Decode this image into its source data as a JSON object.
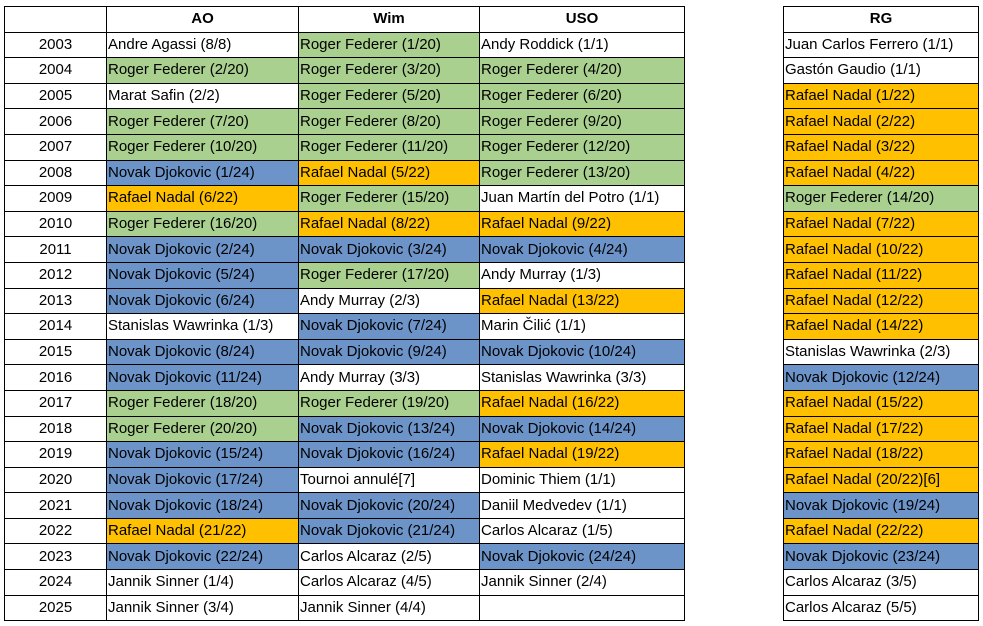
{
  "headers": {
    "year": "",
    "ao": "AO",
    "wim": "Wim",
    "uso": "USO",
    "rg": "RG"
  },
  "colors": {
    "Federer": "#a9d08e",
    "Djokovic": "#6d94c9",
    "Nadal": "#ffc000",
    "none": "#ffffff"
  },
  "rows": [
    {
      "year": "2003",
      "ao": {
        "text": "Andre Agassi (8/8)",
        "player": "none"
      },
      "wim": {
        "text": "Roger Federer (1/20)",
        "player": "Federer"
      },
      "uso": {
        "text": "Andy Roddick (1/1)",
        "player": "none"
      },
      "rg": {
        "text": "Juan Carlos Ferrero (1/1)",
        "player": "none"
      }
    },
    {
      "year": "2004",
      "ao": {
        "text": "Roger Federer (2/20)",
        "player": "Federer"
      },
      "wim": {
        "text": "Roger Federer (3/20)",
        "player": "Federer"
      },
      "uso": {
        "text": "Roger Federer (4/20)",
        "player": "Federer"
      },
      "rg": {
        "text": "Gastón Gaudio (1/1)",
        "player": "none"
      }
    },
    {
      "year": "2005",
      "ao": {
        "text": "Marat Safin (2/2)",
        "player": "none"
      },
      "wim": {
        "text": "Roger Federer (5/20)",
        "player": "Federer"
      },
      "uso": {
        "text": "Roger Federer (6/20)",
        "player": "Federer"
      },
      "rg": {
        "text": "Rafael Nadal (1/22)",
        "player": "Nadal"
      }
    },
    {
      "year": "2006",
      "ao": {
        "text": "Roger Federer (7/20)",
        "player": "Federer"
      },
      "wim": {
        "text": "Roger Federer (8/20)",
        "player": "Federer"
      },
      "uso": {
        "text": "Roger Federer (9/20)",
        "player": "Federer"
      },
      "rg": {
        "text": "Rafael Nadal (2/22)",
        "player": "Nadal"
      }
    },
    {
      "year": "2007",
      "ao": {
        "text": "Roger Federer (10/20)",
        "player": "Federer"
      },
      "wim": {
        "text": "Roger Federer (11/20)",
        "player": "Federer"
      },
      "uso": {
        "text": "Roger Federer (12/20)",
        "player": "Federer"
      },
      "rg": {
        "text": "Rafael Nadal (3/22)",
        "player": "Nadal"
      }
    },
    {
      "year": "2008",
      "ao": {
        "text": "Novak Djokovic (1/24)",
        "player": "Djokovic"
      },
      "wim": {
        "text": "Rafael Nadal (5/22)",
        "player": "Nadal"
      },
      "uso": {
        "text": "Roger Federer (13/20)",
        "player": "Federer"
      },
      "rg": {
        "text": "Rafael Nadal (4/22)",
        "player": "Nadal"
      }
    },
    {
      "year": "2009",
      "ao": {
        "text": "Rafael Nadal (6/22)",
        "player": "Nadal"
      },
      "wim": {
        "text": "Roger Federer (15/20)",
        "player": "Federer"
      },
      "uso": {
        "text": "Juan Martín del Potro (1/1)",
        "player": "none"
      },
      "rg": {
        "text": "Roger Federer (14/20)",
        "player": "Federer"
      }
    },
    {
      "year": "2010",
      "ao": {
        "text": "Roger Federer (16/20)",
        "player": "Federer"
      },
      "wim": {
        "text": "Rafael Nadal (8/22)",
        "player": "Nadal"
      },
      "uso": {
        "text": "Rafael Nadal (9/22)",
        "player": "Nadal"
      },
      "rg": {
        "text": "Rafael Nadal (7/22)",
        "player": "Nadal"
      }
    },
    {
      "year": "2011",
      "ao": {
        "text": "Novak Djokovic (2/24)",
        "player": "Djokovic"
      },
      "wim": {
        "text": "Novak Djokovic (3/24)",
        "player": "Djokovic"
      },
      "uso": {
        "text": "Novak Djokovic (4/24)",
        "player": "Djokovic"
      },
      "rg": {
        "text": "Rafael Nadal (10/22)",
        "player": "Nadal"
      }
    },
    {
      "year": "2012",
      "ao": {
        "text": "Novak Djokovic (5/24)",
        "player": "Djokovic"
      },
      "wim": {
        "text": "Roger Federer (17/20)",
        "player": "Federer"
      },
      "uso": {
        "text": "Andy Murray (1/3)",
        "player": "none"
      },
      "rg": {
        "text": "Rafael Nadal (11/22)",
        "player": "Nadal"
      }
    },
    {
      "year": "2013",
      "ao": {
        "text": "Novak Djokovic (6/24)",
        "player": "Djokovic"
      },
      "wim": {
        "text": "Andy Murray (2/3)",
        "player": "none"
      },
      "uso": {
        "text": "Rafael Nadal (13/22)",
        "player": "Nadal"
      },
      "rg": {
        "text": "Rafael Nadal (12/22)",
        "player": "Nadal"
      }
    },
    {
      "year": "2014",
      "ao": {
        "text": "Stanislas Wawrinka (1/3)",
        "player": "none"
      },
      "wim": {
        "text": "Novak Djokovic (7/24)",
        "player": "Djokovic"
      },
      "uso": {
        "text": "Marin Čilić (1/1)",
        "player": "none"
      },
      "rg": {
        "text": "Rafael Nadal (14/22)",
        "player": "Nadal"
      }
    },
    {
      "year": "2015",
      "ao": {
        "text": "Novak Djokovic (8/24)",
        "player": "Djokovic"
      },
      "wim": {
        "text": "Novak Djokovic (9/24)",
        "player": "Djokovic"
      },
      "uso": {
        "text": "Novak Djokovic (10/24)",
        "player": "Djokovic"
      },
      "rg": {
        "text": "Stanislas Wawrinka (2/3)",
        "player": "none"
      }
    },
    {
      "year": "2016",
      "ao": {
        "text": "Novak Djokovic (11/24)",
        "player": "Djokovic"
      },
      "wim": {
        "text": "Andy Murray (3/3)",
        "player": "none"
      },
      "uso": {
        "text": "Stanislas Wawrinka (3/3)",
        "player": "none"
      },
      "rg": {
        "text": "Novak Djokovic (12/24)",
        "player": "Djokovic"
      }
    },
    {
      "year": "2017",
      "ao": {
        "text": "Roger Federer (18/20)",
        "player": "Federer"
      },
      "wim": {
        "text": "Roger Federer (19/20)",
        "player": "Federer"
      },
      "uso": {
        "text": "Rafael Nadal (16/22)",
        "player": "Nadal"
      },
      "rg": {
        "text": "Rafael Nadal (15/22)",
        "player": "Nadal"
      }
    },
    {
      "year": "2018",
      "ao": {
        "text": "Roger Federer (20/20)",
        "player": "Federer"
      },
      "wim": {
        "text": "Novak Djokovic (13/24)",
        "player": "Djokovic"
      },
      "uso": {
        "text": "Novak Djokovic (14/24)",
        "player": "Djokovic"
      },
      "rg": {
        "text": "Rafael Nadal (17/22)",
        "player": "Nadal"
      }
    },
    {
      "year": "2019",
      "ao": {
        "text": "Novak Djokovic (15/24)",
        "player": "Djokovic"
      },
      "wim": {
        "text": "Novak Djokovic (16/24)",
        "player": "Djokovic"
      },
      "uso": {
        "text": "Rafael Nadal (19/22)",
        "player": "Nadal"
      },
      "rg": {
        "text": "Rafael Nadal (18/22)",
        "player": "Nadal"
      }
    },
    {
      "year": "2020",
      "ao": {
        "text": "Novak Djokovic (17/24)",
        "player": "Djokovic"
      },
      "wim": {
        "text": "Tournoi annulé[7]",
        "player": "none"
      },
      "uso": {
        "text": "Dominic Thiem (1/1)",
        "player": "none"
      },
      "rg": {
        "text": "Rafael Nadal (20/22)[6]",
        "player": "Nadal"
      }
    },
    {
      "year": "2021",
      "ao": {
        "text": "Novak Djokovic (18/24)",
        "player": "Djokovic"
      },
      "wim": {
        "text": "Novak Djokovic (20/24)",
        "player": "Djokovic"
      },
      "uso": {
        "text": "Daniil Medvedev (1/1)",
        "player": "none"
      },
      "rg": {
        "text": "Novak Djokovic (19/24)",
        "player": "Djokovic"
      }
    },
    {
      "year": "2022",
      "ao": {
        "text": "Rafael Nadal (21/22)",
        "player": "Nadal"
      },
      "wim": {
        "text": "Novak Djokovic (21/24)",
        "player": "Djokovic"
      },
      "uso": {
        "text": "Carlos Alcaraz (1/5)",
        "player": "none"
      },
      "rg": {
        "text": "Rafael Nadal (22/22)",
        "player": "Nadal"
      }
    },
    {
      "year": "2023",
      "ao": {
        "text": "Novak Djokovic (22/24)",
        "player": "Djokovic"
      },
      "wim": {
        "text": "Carlos Alcaraz (2/5)",
        "player": "none"
      },
      "uso": {
        "text": "Novak Djokovic (24/24)",
        "player": "Djokovic"
      },
      "rg": {
        "text": "Novak Djokovic (23/24)",
        "player": "Djokovic"
      }
    },
    {
      "year": "2024",
      "ao": {
        "text": "Jannik Sinner (1/4)",
        "player": "none"
      },
      "wim": {
        "text": "Carlos Alcaraz (4/5)",
        "player": "none"
      },
      "uso": {
        "text": "Jannik Sinner (2/4)",
        "player": "none"
      },
      "rg": {
        "text": "Carlos Alcaraz (3/5)",
        "player": "none"
      }
    },
    {
      "year": "2025",
      "ao": {
        "text": "Jannik Sinner (3/4)",
        "player": "none"
      },
      "wim": {
        "text": "Jannik Sinner (4/4)",
        "player": "none"
      },
      "uso": {
        "text": "",
        "player": "none"
      },
      "rg": {
        "text": "Carlos Alcaraz (5/5)",
        "player": "none"
      }
    }
  ]
}
